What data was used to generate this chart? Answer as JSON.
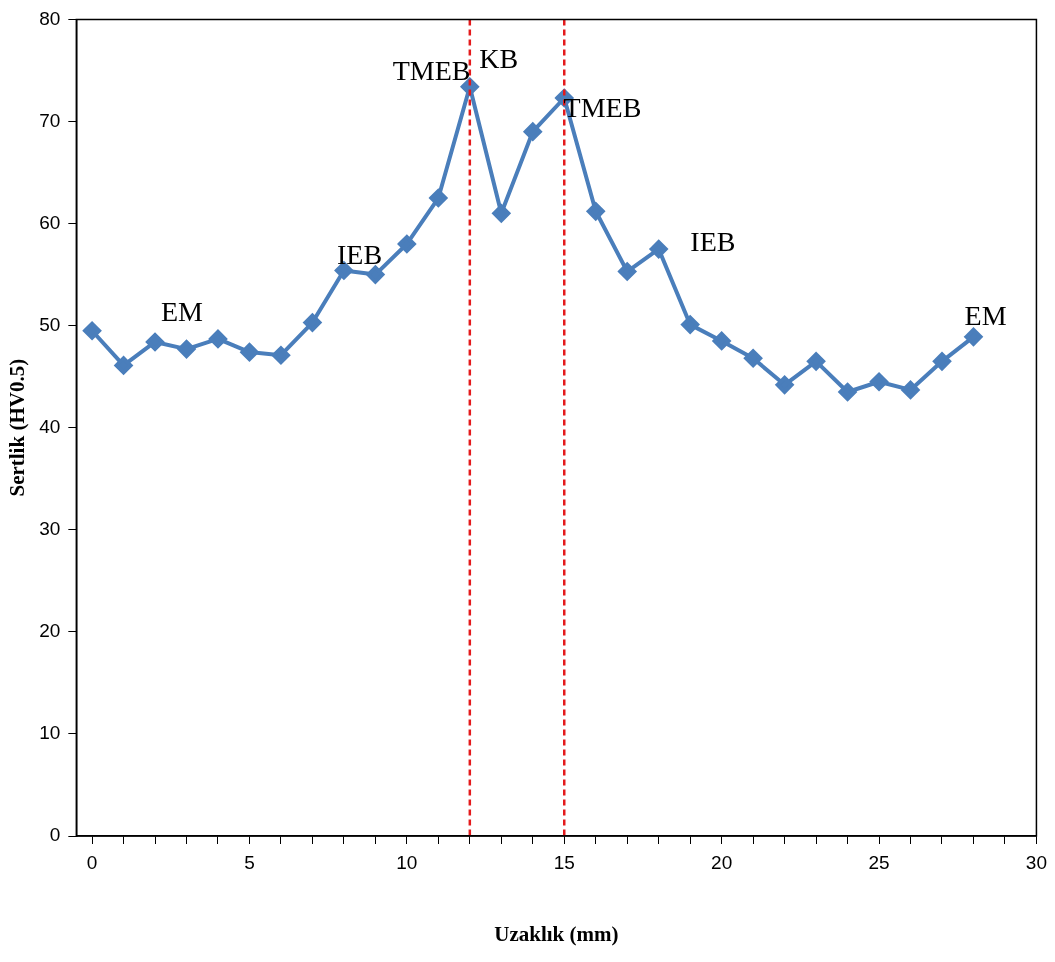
{
  "chart_data": {
    "type": "line",
    "xlabel": "Uzaklık (mm)",
    "ylabel": "Sertlik (HV0.5)",
    "x": [
      0,
      1,
      2,
      3,
      4,
      5,
      6,
      7,
      8,
      9,
      10,
      11,
      12,
      13,
      14,
      15,
      16,
      17,
      18,
      19,
      20,
      21,
      22,
      23,
      24,
      25,
      26,
      27,
      28
    ],
    "series": [
      {
        "color": "#4a7ebb",
        "values": [
          49.5,
          46.1,
          48.4,
          47.7,
          48.7,
          47.4,
          47.1,
          50.3,
          55.4,
          55.0,
          58.0,
          62.5,
          73.4,
          61.0,
          69.0,
          72.3,
          61.2,
          55.3,
          57.5,
          50.1,
          48.5,
          46.8,
          44.2,
          46.5,
          43.5,
          44.5,
          43.7,
          46.5,
          48.9
        ]
      }
    ],
    "xlim": [
      -0.5,
      30
    ],
    "xticks": [
      0,
      {
        "value": 1,
        "label": null
      },
      {
        "value": 2,
        "label": null
      },
      {
        "value": 3,
        "label": null
      },
      {
        "value": 4,
        "label": null
      },
      5,
      {
        "value": 6,
        "label": null
      },
      {
        "value": 7,
        "label": null
      },
      {
        "value": 8,
        "label": null
      },
      {
        "value": 9,
        "label": null
      },
      10,
      {
        "value": 11,
        "label": null
      },
      {
        "value": 12,
        "label": null
      },
      {
        "value": 13,
        "label": null
      },
      {
        "value": 14,
        "label": null
      },
      15,
      {
        "value": 16,
        "label": null
      },
      {
        "value": 17,
        "label": null
      },
      {
        "value": 18,
        "label": null
      },
      {
        "value": 19,
        "label": null
      },
      20,
      {
        "value": 21,
        "label": null
      },
      {
        "value": 22,
        "label": null
      },
      {
        "value": 23,
        "label": null
      },
      {
        "value": 24,
        "label": null
      },
      25,
      {
        "value": 26,
        "label": null
      },
      {
        "value": 27,
        "label": null
      },
      {
        "value": 28,
        "label": null
      },
      {
        "value": 29,
        "label": null
      },
      30
    ],
    "ylim": [
      0,
      80
    ],
    "yticks": [
      0,
      10,
      20,
      30,
      40,
      50,
      60,
      70,
      80
    ],
    "ref_lines": [
      {
        "axis": "x",
        "value": 12,
        "color": "#e41a1c",
        "line_style": "dashed"
      },
      {
        "axis": "x",
        "value": 15,
        "color": "#e41a1c",
        "line_style": "dashed"
      }
    ],
    "annotations": [
      "EM",
      "IEB",
      "TMEB",
      "KB",
      "TMEB",
      "IEB",
      "EM"
    ],
    "grid": false,
    "legend": false,
    "marker": "diamond",
    "line_style": "solid"
  }
}
